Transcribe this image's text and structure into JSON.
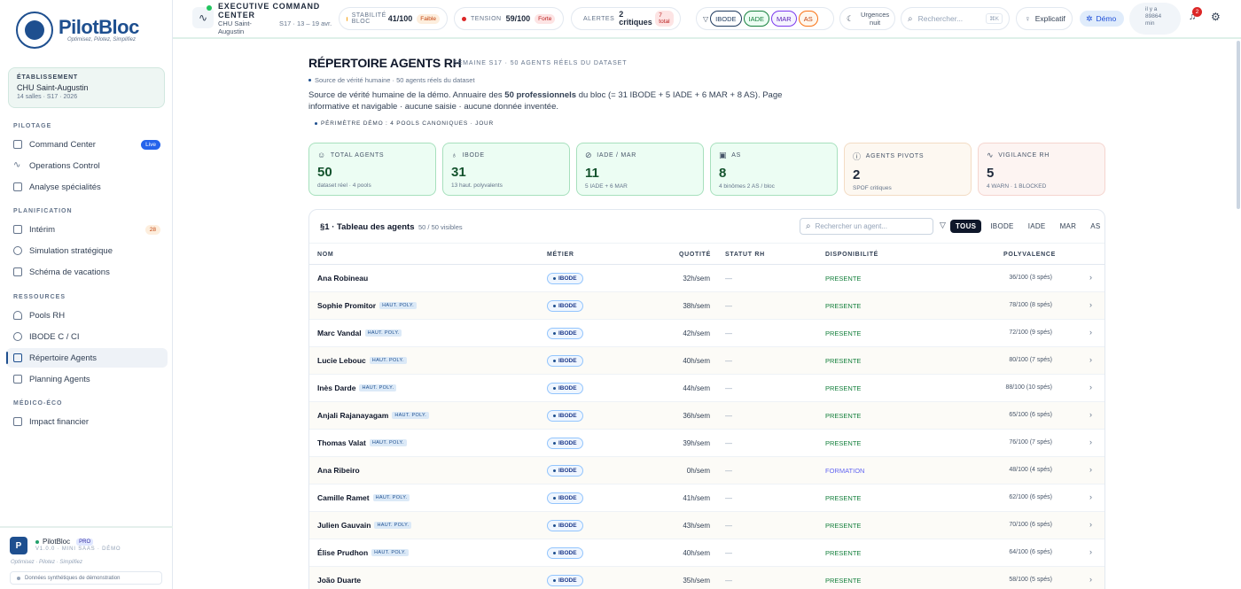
{
  "sidebar": {
    "logo_name": "PilotBloc",
    "logo_tagline": "Optimisez, Pilotez, Simplifiez",
    "establishment": {
      "caption": "ÉTABLISSEMENT",
      "name": "CHU Saint-Augustin",
      "sub": "14 salles · S17 · 2026"
    },
    "sections": {
      "pilotage": "PILOTAGE",
      "planification": "PLANIFICATION",
      "ressources": "RESSOURCES",
      "medico": "MÉDICO-ÉCO"
    },
    "items": {
      "command_center": "Command Center",
      "command_center_badge": "Live",
      "operations_control": "Operations Control",
      "analyse": "Analyse spécialités",
      "interim": "Intérim",
      "interim_badge": "28",
      "simulation": "Simulation stratégique",
      "schema": "Schéma de vacations",
      "pools": "Pools RH",
      "ibode": "IBODE C / CI",
      "repertoire": "Répertoire Agents",
      "planning": "Planning Agents",
      "impact": "Impact financier"
    },
    "footer": {
      "avatar": "P",
      "name": "PilotBloc",
      "tag": "PRO",
      "version": "V1.0.0 · MINI SAAS · DÉMO",
      "slogan": "Optimisez · Pilotez · Simplifiez",
      "synthetic": "Données synthétiques de démonstration"
    }
  },
  "topbar": {
    "title": "EXECUTIVE COMMAND CENTER",
    "site": "CHU Saint-Augustin",
    "week": "S17 · 13 – 19 avr.",
    "stabilite": {
      "label": "STABILITÉ BLOC",
      "value": "41/100",
      "tag": "Faible"
    },
    "tension": {
      "label": "TENSION",
      "value": "59/100",
      "tag": "Forte"
    },
    "alertes": {
      "label": "ALERTES",
      "value": "2 critiques",
      "tag": "7 total"
    },
    "filters": [
      "IBODE",
      "IADE",
      "MAR",
      "AS"
    ],
    "urgences": "Urgences nuit",
    "search_placeholder": "Rechercher...",
    "search_kbd": "⌘K",
    "explicatif": "Explicatif",
    "demo": "Démo",
    "ago": "il y a 89864 min",
    "notif_count": "2"
  },
  "page": {
    "title": "RÉPERTOIRE AGENTS RH",
    "subtitle": "SEMAINE S17 · 50 AGENTS RÉELS DU DATASET",
    "crumb": "Source de vérité humaine · 50 agents réels du dataset",
    "desc_a": "Source de vérité humaine de la démo. Annuaire des ",
    "desc_b": "50 professionnels",
    "desc_c": " du bloc (= 31 IBODE + 5 IADE + 6 MAR + 8 AS). Page informative et navigable · aucune saisie · aucune donnée inventée.",
    "perimetre": "PÉRIMÈTRE DÉMO : 4 POOLS CANONIQUES · JOUR"
  },
  "kpis": [
    {
      "label": "TOTAL AGENTS",
      "value": "50",
      "sub": "dataset réel · 4 pools"
    },
    {
      "label": "IBODE",
      "value": "31",
      "sub": "13 haut. polyvalents"
    },
    {
      "label": "IADE / MAR",
      "value": "11",
      "sub": "5 IADE + 6 MAR"
    },
    {
      "label": "AS",
      "value": "8",
      "sub": "4 binômes 2 AS / bloc"
    },
    {
      "label": "AGENTS PIVOTS",
      "value": "2",
      "sub": "SPOF critiques"
    },
    {
      "label": "VIGILANCE RH",
      "value": "5",
      "sub": "4 WARN · 1 BLOCKED"
    }
  ],
  "table": {
    "title": "§1 · Tableau des agents",
    "count": "50 / 50 visibles",
    "search_placeholder": "Rechercher un agent...",
    "segments": [
      "TOUS",
      "IBODE",
      "IADE",
      "MAR",
      "AS"
    ],
    "headers": {
      "nom": "NOM",
      "metier": "MÉTIER",
      "quotite": "QUOTITÉ",
      "statut": "STATUT RH",
      "dispo": "DISPONIBILITÉ",
      "poly": "POLYVALENCE"
    },
    "hp_label": "HAUT. POLY.",
    "rows": [
      {
        "name": "Ana Robineau",
        "hp": false,
        "metier": "IBODE",
        "quotite": "32h/sem",
        "statut": "—",
        "dispo": "PRESENTE",
        "poly": "36/100 (3 spés)"
      },
      {
        "name": "Sophie Promitor",
        "hp": true,
        "metier": "IBODE",
        "quotite": "38h/sem",
        "statut": "—",
        "dispo": "PRESENTE",
        "poly": "78/100 (8 spés)"
      },
      {
        "name": "Marc Vandal",
        "hp": true,
        "metier": "IBODE",
        "quotite": "42h/sem",
        "statut": "—",
        "dispo": "PRESENTE",
        "poly": "72/100 (9 spés)"
      },
      {
        "name": "Lucie Lebouc",
        "hp": true,
        "metier": "IBODE",
        "quotite": "40h/sem",
        "statut": "—",
        "dispo": "PRESENTE",
        "poly": "80/100 (7 spés)"
      },
      {
        "name": "Inès Darde",
        "hp": true,
        "metier": "IBODE",
        "quotite": "44h/sem",
        "statut": "—",
        "dispo": "PRESENTE",
        "poly": "88/100 (10 spés)"
      },
      {
        "name": "Anjali Rajanayagam",
        "hp": true,
        "metier": "IBODE",
        "quotite": "36h/sem",
        "statut": "—",
        "dispo": "PRESENTE",
        "poly": "65/100 (6 spés)"
      },
      {
        "name": "Thomas Valat",
        "hp": true,
        "metier": "IBODE",
        "quotite": "39h/sem",
        "statut": "—",
        "dispo": "PRESENTE",
        "poly": "76/100 (7 spés)"
      },
      {
        "name": "Ana Ribeiro",
        "hp": false,
        "metier": "IBODE",
        "quotite": "0h/sem",
        "statut": "—",
        "dispo": "FORMATION",
        "poly": "48/100 (4 spés)"
      },
      {
        "name": "Camille Ramet",
        "hp": true,
        "metier": "IBODE",
        "quotite": "41h/sem",
        "statut": "—",
        "dispo": "PRESENTE",
        "poly": "62/100 (6 spés)"
      },
      {
        "name": "Julien Gauvain",
        "hp": true,
        "metier": "IBODE",
        "quotite": "43h/sem",
        "statut": "—",
        "dispo": "PRESENTE",
        "poly": "70/100 (6 spés)"
      },
      {
        "name": "Élise Prudhon",
        "hp": true,
        "metier": "IBODE",
        "quotite": "40h/sem",
        "statut": "—",
        "dispo": "PRESENTE",
        "poly": "64/100 (6 spés)"
      },
      {
        "name": "João Duarte",
        "hp": false,
        "metier": "IBODE",
        "quotite": "35h/sem",
        "statut": "—",
        "dispo": "PRESENTE",
        "poly": "58/100 (5 spés)"
      }
    ]
  },
  "colors": {
    "brand": "#1e4f8f",
    "success": "#15803d",
    "danger": "#dc2626",
    "accent": "#2563eb"
  }
}
